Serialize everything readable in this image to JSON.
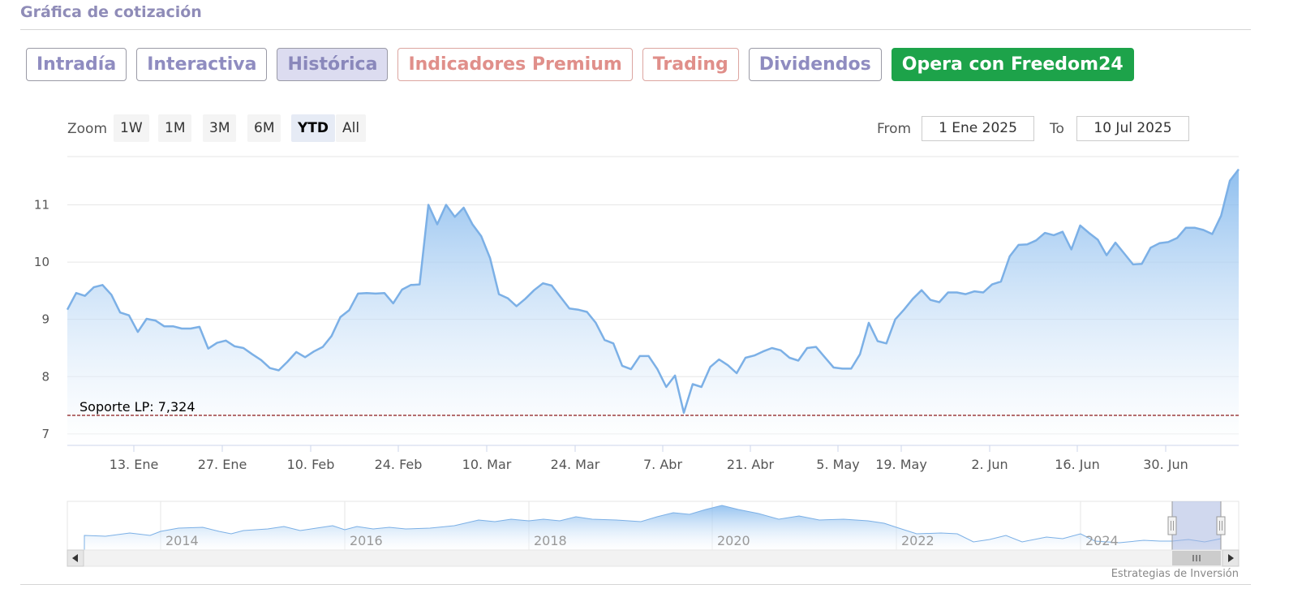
{
  "header": {
    "title": "Gráfica de cotización"
  },
  "tabs": [
    {
      "label": "Intradía",
      "style": "normal"
    },
    {
      "label": "Interactiva",
      "style": "normal"
    },
    {
      "label": "Histórica",
      "style": "active"
    },
    {
      "label": "Indicadores Premium",
      "style": "salmon"
    },
    {
      "label": "Trading",
      "style": "salmon"
    },
    {
      "label": "Dividendos",
      "style": "normal"
    },
    {
      "label": "Opera con Freedom24",
      "style": "green"
    }
  ],
  "range_selector": {
    "zoom_label": "Zoom",
    "buttons": [
      "1W",
      "1M",
      "3M",
      "6M",
      "YTD",
      "All"
    ],
    "selected": "YTD",
    "from_label": "From",
    "from_value": "1 Ene 2025",
    "to_label": "To",
    "to_value": "10 Jul 2025"
  },
  "colors": {
    "line": "#7cb0e6",
    "support": "#8b1a1a",
    "green_button": "#1da34a"
  },
  "chart_data": {
    "type": "area",
    "y_ticks": [
      7,
      8,
      9,
      10,
      11
    ],
    "ylim": [
      6.8,
      11.8
    ],
    "x_tick_labels": [
      "13. Ene",
      "27. Ene",
      "10. Feb",
      "24. Feb",
      "10. Mar",
      "24. Mar",
      "7. Abr",
      "21. Abr",
      "5. May",
      "19. May",
      "2. Jun",
      "16. Jun",
      "30. Jun"
    ],
    "support_line": {
      "label": "Soporte LP: 7,324",
      "value": 7.324
    },
    "series": [
      {
        "values": [
          9.17,
          9.46,
          9.41,
          9.56,
          9.6,
          9.43,
          9.12,
          9.07,
          8.78,
          9.01,
          8.98,
          8.88,
          8.88,
          8.84,
          8.84,
          8.87,
          8.49,
          8.59,
          8.63,
          8.53,
          8.5,
          8.39,
          8.29,
          8.15,
          8.11,
          8.26,
          8.43,
          8.34,
          8.44,
          8.52,
          8.71,
          9.04,
          9.16,
          9.45,
          9.46,
          9.45,
          9.46,
          9.28,
          9.52,
          9.6,
          9.61,
          11.0,
          10.66,
          11.0,
          10.79,
          10.95,
          10.66,
          10.45,
          10.07,
          9.44,
          9.37,
          9.23,
          9.36,
          9.51,
          9.63,
          9.59,
          9.39,
          9.19,
          9.17,
          9.13,
          8.94,
          8.64,
          8.58,
          8.19,
          8.13,
          8.36,
          8.36,
          8.13,
          7.82,
          8.02,
          7.37,
          7.87,
          7.82,
          8.17,
          8.3,
          8.2,
          8.06,
          8.33,
          8.37,
          8.44,
          8.5,
          8.46,
          8.33,
          8.28,
          8.5,
          8.52,
          8.34,
          8.16,
          8.14,
          8.14,
          8.39,
          8.94,
          8.62,
          8.58,
          9.0,
          9.17,
          9.36,
          9.51,
          9.34,
          9.3,
          9.47,
          9.47,
          9.44,
          9.49,
          9.47,
          9.61,
          9.66,
          10.1,
          10.3,
          10.31,
          10.38,
          10.51,
          10.47,
          10.53,
          10.22,
          10.64,
          10.51,
          10.39,
          10.12,
          10.34,
          10.15,
          9.96,
          9.97,
          10.25,
          10.33,
          10.35,
          10.42,
          10.6,
          10.6,
          10.56,
          10.49,
          10.81,
          11.42,
          11.62
        ]
      }
    ]
  },
  "navigator": {
    "year_labels": [
      "2014",
      "2016",
      "2018",
      "2020",
      "2022",
      "2024"
    ]
  },
  "credits": "Estrategias de Inversión"
}
